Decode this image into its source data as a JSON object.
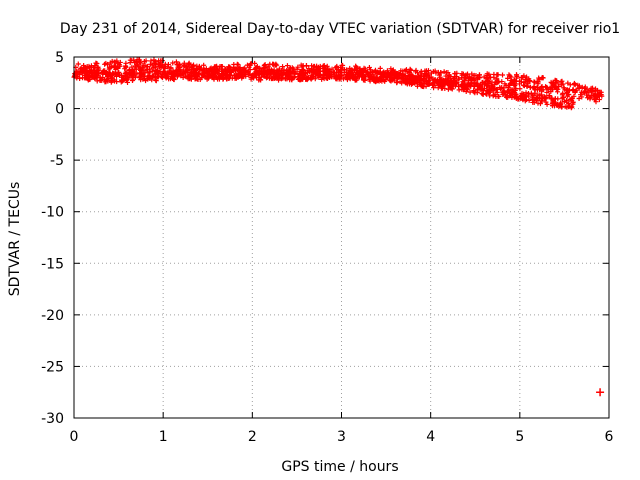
{
  "chart_data": {
    "type": "scatter",
    "title": "Day 231 of 2014, Sidereal Day-to-day VTEC variation (SDTVAR) for receiver rio1",
    "xlabel": "GPS time / hours",
    "ylabel": "SDTVAR / TECUs",
    "xlim": [
      0,
      6
    ],
    "ylim": [
      -30,
      5
    ],
    "xticks": [
      "0",
      "1",
      "2",
      "3",
      "4",
      "5",
      "6"
    ],
    "yticks": [
      "5",
      "0",
      "-5",
      "-10",
      "-15",
      "-20",
      "-25",
      "-30"
    ],
    "grid": true,
    "color": "#ff0000",
    "series": [
      {
        "band": "upper",
        "x": [
          0.0,
          0.2,
          0.4,
          0.6,
          0.8,
          1.0,
          1.2,
          1.4,
          1.6,
          1.8,
          2.0,
          2.2,
          2.4,
          2.6,
          2.8,
          3.0,
          3.2,
          3.4,
          3.6,
          3.8,
          4.0,
          4.2,
          4.4,
          4.6,
          4.8,
          5.0,
          5.2,
          5.4,
          5.6,
          5.8,
          5.92
        ],
        "y": [
          3.6,
          3.7,
          3.9,
          4.0,
          4.1,
          4.0,
          3.8,
          3.6,
          3.5,
          3.6,
          3.7,
          3.7,
          3.6,
          3.5,
          3.5,
          3.5,
          3.4,
          3.3,
          3.2,
          3.1,
          3.0,
          2.9,
          2.8,
          2.8,
          2.7,
          2.6,
          2.4,
          2.1,
          1.8,
          1.4,
          1.0
        ],
        "spread": 0.7
      },
      {
        "band": "lower",
        "x": [
          0.0,
          0.2,
          0.4,
          0.6,
          0.8,
          1.0,
          1.2,
          1.4,
          1.6,
          1.8,
          2.0,
          2.2,
          2.4,
          2.6,
          2.8,
          3.0,
          3.2,
          3.4,
          3.6,
          3.8,
          4.0,
          4.2,
          4.4,
          4.6,
          4.8,
          5.0,
          5.2,
          5.4,
          5.6
        ],
        "y": [
          3.5,
          3.2,
          3.0,
          3.0,
          3.2,
          3.2,
          3.3,
          3.3,
          3.3,
          3.4,
          3.3,
          3.2,
          3.2,
          3.3,
          3.4,
          3.3,
          3.2,
          3.1,
          3.0,
          2.7,
          2.5,
          2.3,
          2.1,
          1.8,
          1.6,
          1.3,
          1.0,
          0.7,
          0.5
        ],
        "spread": 0.5
      },
      {
        "band": "outlier",
        "x": [
          5.9
        ],
        "y": [
          -27.5
        ],
        "spread": 0
      }
    ]
  }
}
